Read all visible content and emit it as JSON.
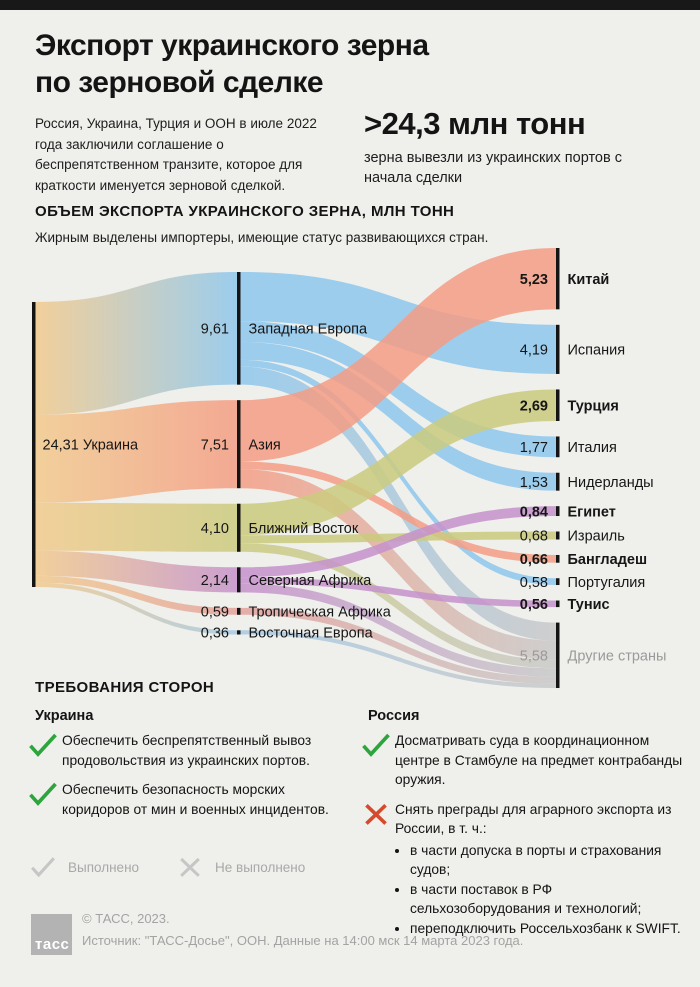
{
  "page": {
    "background": "#efefec",
    "top_strip_color": "#181818"
  },
  "header": {
    "title_line1": "Экспорт украинского зерна",
    "title_line2": "по зерновой сделке",
    "intro": "Россия, Украина, Турция и ООН в июле 2022 года заключили соглашение о беспрепятственном транзите, которое для краткости именуется зерновой сделкой.",
    "big_number": ">24,3 млн тонн",
    "big_number_caption": "зерна вывезли из украинских портов с начала сделки"
  },
  "chart": {
    "section_title": "ОБЪЕМ ЭКСПОРТА УКРАИНСКОГО ЗЕРНА, МЛН ТОНН",
    "note": "Жирным выделены импортеры, имеющие статус развивающихся стран."
  },
  "chart_data": {
    "type": "sankey",
    "title": "Объем экспорта украинского зерна",
    "unit": "млн тонн",
    "note_bold_meaning": "импортеры со статусом развивающихся стран",
    "nodes": [
      {
        "id": "ukraine",
        "label": "Украина",
        "value": 24.31,
        "value_label": "24,31",
        "col": 0,
        "color": "#f2ca8d",
        "bold": false,
        "muted": false
      },
      {
        "id": "west_europe",
        "label": "Западная Европа",
        "value": 9.61,
        "value_label": "9,61",
        "col": 1,
        "color": "#8ec7ed",
        "bold": false,
        "muted": false
      },
      {
        "id": "asia",
        "label": "Азия",
        "value": 7.51,
        "value_label": "7,51",
        "col": 1,
        "color": "#f49d84",
        "bold": false,
        "muted": false
      },
      {
        "id": "middle_east",
        "label": "Ближний Восток",
        "value": 4.1,
        "value_label": "4,10",
        "col": 1,
        "color": "#cbcb7e",
        "bold": false,
        "muted": false
      },
      {
        "id": "north_africa",
        "label": "Северная Африка",
        "value": 2.14,
        "value_label": "2,14",
        "col": 1,
        "color": "#c592cb",
        "bold": false,
        "muted": false
      },
      {
        "id": "trop_africa",
        "label": "Тропическая Африка",
        "value": 0.59,
        "value_label": "0,59",
        "col": 1,
        "color": "#e3a29d",
        "bold": false,
        "muted": false
      },
      {
        "id": "east_europe",
        "label": "Восточная Европа",
        "value": 0.36,
        "value_label": "0,36",
        "col": 1,
        "color": "#a6c9e3",
        "bold": false,
        "muted": false
      },
      {
        "id": "china",
        "label": "Китай",
        "value": 5.23,
        "value_label": "5,23",
        "col": 2,
        "color": "#f49d84",
        "bold": true,
        "muted": false
      },
      {
        "id": "spain",
        "label": "Испания",
        "value": 4.19,
        "value_label": "4,19",
        "col": 2,
        "color": "#8ec7ed",
        "bold": false,
        "muted": false
      },
      {
        "id": "turkey",
        "label": "Турция",
        "value": 2.69,
        "value_label": "2,69",
        "col": 2,
        "color": "#cbcb7e",
        "bold": true,
        "muted": false
      },
      {
        "id": "italy",
        "label": "Италия",
        "value": 1.77,
        "value_label": "1,77",
        "col": 2,
        "color": "#8ec7ed",
        "bold": false,
        "muted": false
      },
      {
        "id": "netherlands",
        "label": "Нидерланды",
        "value": 1.53,
        "value_label": "1,53",
        "col": 2,
        "color": "#8ec7ed",
        "bold": false,
        "muted": false
      },
      {
        "id": "egypt",
        "label": "Египет",
        "value": 0.84,
        "value_label": "0,84",
        "col": 2,
        "color": "#c592cb",
        "bold": true,
        "muted": false
      },
      {
        "id": "israel",
        "label": "Израиль",
        "value": 0.68,
        "value_label": "0,68",
        "col": 2,
        "color": "#cbcb7e",
        "bold": false,
        "muted": false
      },
      {
        "id": "bangladesh",
        "label": "Бангладеш",
        "value": 0.66,
        "value_label": "0,66",
        "col": 2,
        "color": "#f49d84",
        "bold": true,
        "muted": false
      },
      {
        "id": "portugal",
        "label": "Португалия",
        "value": 0.58,
        "value_label": "0,58",
        "col": 2,
        "color": "#8ec7ed",
        "bold": false,
        "muted": false
      },
      {
        "id": "tunisia",
        "label": "Тунис",
        "value": 0.56,
        "value_label": "0,56",
        "col": 2,
        "color": "#c592cb",
        "bold": true,
        "muted": false
      },
      {
        "id": "others",
        "label": "Другие страны",
        "value": 5.58,
        "value_label": "5,58",
        "col": 2,
        "color": "#c9c9c9",
        "bold": false,
        "muted": true
      }
    ],
    "links": [
      {
        "source": "ukraine",
        "target": "west_europe",
        "value": 9.61
      },
      {
        "source": "ukraine",
        "target": "asia",
        "value": 7.51
      },
      {
        "source": "ukraine",
        "target": "middle_east",
        "value": 4.1
      },
      {
        "source": "ukraine",
        "target": "north_africa",
        "value": 2.14
      },
      {
        "source": "ukraine",
        "target": "trop_africa",
        "value": 0.59
      },
      {
        "source": "ukraine",
        "target": "east_europe",
        "value": 0.36
      },
      {
        "source": "west_europe",
        "target": "spain",
        "value": 4.19
      },
      {
        "source": "west_europe",
        "target": "italy",
        "value": 1.77
      },
      {
        "source": "west_europe",
        "target": "netherlands",
        "value": 1.53
      },
      {
        "source": "west_europe",
        "target": "portugal",
        "value": 0.58
      },
      {
        "source": "west_europe",
        "target": "others",
        "value": 1.54
      },
      {
        "source": "asia",
        "target": "china",
        "value": 5.23
      },
      {
        "source": "asia",
        "target": "bangladesh",
        "value": 0.66
      },
      {
        "source": "asia",
        "target": "others",
        "value": 1.62
      },
      {
        "source": "middle_east",
        "target": "turkey",
        "value": 2.69
      },
      {
        "source": "middle_east",
        "target": "israel",
        "value": 0.68
      },
      {
        "source": "middle_east",
        "target": "others",
        "value": 0.73
      },
      {
        "source": "north_africa",
        "target": "egypt",
        "value": 0.84
      },
      {
        "source": "north_africa",
        "target": "tunisia",
        "value": 0.56
      },
      {
        "source": "north_africa",
        "target": "others",
        "value": 0.74
      },
      {
        "source": "trop_africa",
        "target": "others",
        "value": 0.59
      },
      {
        "source": "east_europe",
        "target": "others",
        "value": 0.36
      }
    ]
  },
  "requirements": {
    "section_title": "ТРЕБОВАНИЯ СТОРОН",
    "status_colors": {
      "done": "#2da53c",
      "failed": "#d54a2c",
      "legend_icon": "#c6c6c6"
    },
    "ukraine": {
      "title": "Украина",
      "items": [
        {
          "status": "done",
          "text": "Обеспечить беспрепятственный вывоз продовольствия из украинских портов."
        },
        {
          "status": "done",
          "text": "Обеспечить безопасность морских коридоров от мин и военных инцидентов."
        }
      ]
    },
    "russia": {
      "title": "Россия",
      "items": [
        {
          "status": "done",
          "text": "Досматривать суда в координационном центре в Стамбуле на предмет контрабанды оружия."
        },
        {
          "status": "failed",
          "text": "Снять преграды для аграрного экспорта из России, в т. ч.:",
          "bullets": [
            "в части допуска в порты и страхования судов;",
            "в части поставок в РФ сельхозоборудования и технологий;",
            "переподключить Россельхозбанк к SWIFT."
          ]
        }
      ]
    },
    "legend": {
      "done": "Выполнено",
      "not_done": "Не выполнено"
    }
  },
  "footer": {
    "logo_text": "тасс",
    "copyright": "© ТАСС, 2023.",
    "source": "Источник: \"ТАСС-Досье\", ООН. Данные на 14:00 мск 14 марта 2023 года."
  }
}
